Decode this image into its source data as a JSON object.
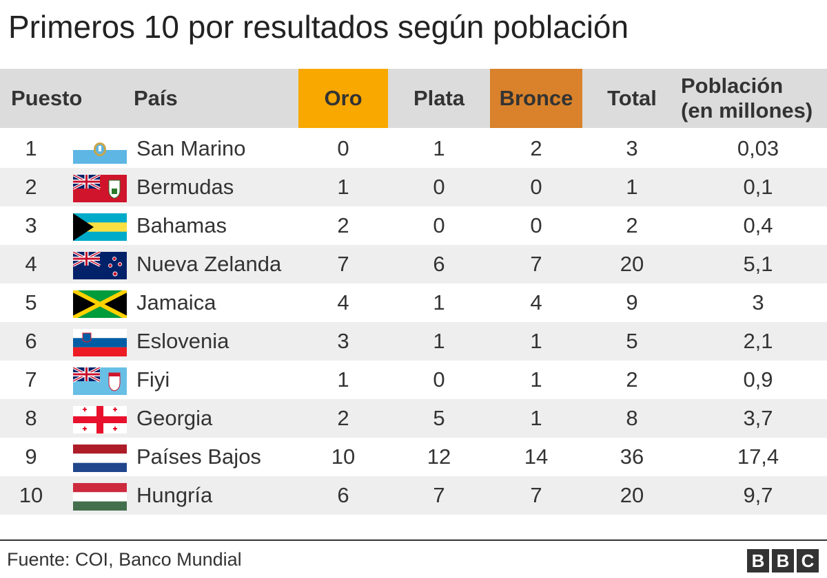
{
  "title": "Primeros 10 por resultados según población",
  "columns": {
    "rank": "Puesto",
    "country": "País",
    "gold": "Oro",
    "silver": "Plata",
    "bronze": "Bronce",
    "total": "Total",
    "population_line1": "Población",
    "population_line2": "(en millones)"
  },
  "colors": {
    "gold_header": "#f9a800",
    "bronze_header": "#d9822b",
    "header_bg": "#dcdcdc",
    "row_shade": "#eeeeee"
  },
  "chart_data": {
    "type": "table",
    "title": "Primeros 10 por resultados según población",
    "columns": [
      "Puesto",
      "País",
      "Oro",
      "Plata",
      "Bronce",
      "Total",
      "Población (en millones)"
    ],
    "rows": [
      {
        "rank": "1",
        "country": "San Marino",
        "flag": "san-marino-flag",
        "gold": "0",
        "silver": "1",
        "bronze": "2",
        "total": "3",
        "population": "0,03"
      },
      {
        "rank": "2",
        "country": "Bermudas",
        "flag": "bermuda-flag",
        "gold": "1",
        "silver": "0",
        "bronze": "0",
        "total": "1",
        "population": "0,1"
      },
      {
        "rank": "3",
        "country": "Bahamas",
        "flag": "bahamas-flag",
        "gold": "2",
        "silver": "0",
        "bronze": "0",
        "total": "2",
        "population": "0,4"
      },
      {
        "rank": "4",
        "country": "Nueva Zelanda",
        "flag": "new-zealand-flag",
        "gold": "7",
        "silver": "6",
        "bronze": "7",
        "total": "20",
        "population": "5,1"
      },
      {
        "rank": "5",
        "country": "Jamaica",
        "flag": "jamaica-flag",
        "gold": "4",
        "silver": "1",
        "bronze": "4",
        "total": "9",
        "population": "3"
      },
      {
        "rank": "6",
        "country": "Eslovenia",
        "flag": "slovenia-flag",
        "gold": "3",
        "silver": "1",
        "bronze": "1",
        "total": "5",
        "population": "2,1"
      },
      {
        "rank": "7",
        "country": "Fiyi",
        "flag": "fiji-flag",
        "gold": "1",
        "silver": "0",
        "bronze": "1",
        "total": "2",
        "population": "0,9"
      },
      {
        "rank": "8",
        "country": "Georgia",
        "flag": "georgia-flag",
        "gold": "2",
        "silver": "5",
        "bronze": "1",
        "total": "8",
        "population": "3,7"
      },
      {
        "rank": "9",
        "country": "Países Bajos",
        "flag": "netherlands-flag",
        "gold": "10",
        "silver": "12",
        "bronze": "14",
        "total": "36",
        "population": "17,4"
      },
      {
        "rank": "10",
        "country": "Hungría",
        "flag": "hungary-flag",
        "gold": "6",
        "silver": "7",
        "bronze": "7",
        "total": "20",
        "population": "9,7"
      }
    ]
  },
  "footer": {
    "source": "Fuente: COI, Banco Mundial",
    "logo": [
      "B",
      "B",
      "C"
    ]
  }
}
